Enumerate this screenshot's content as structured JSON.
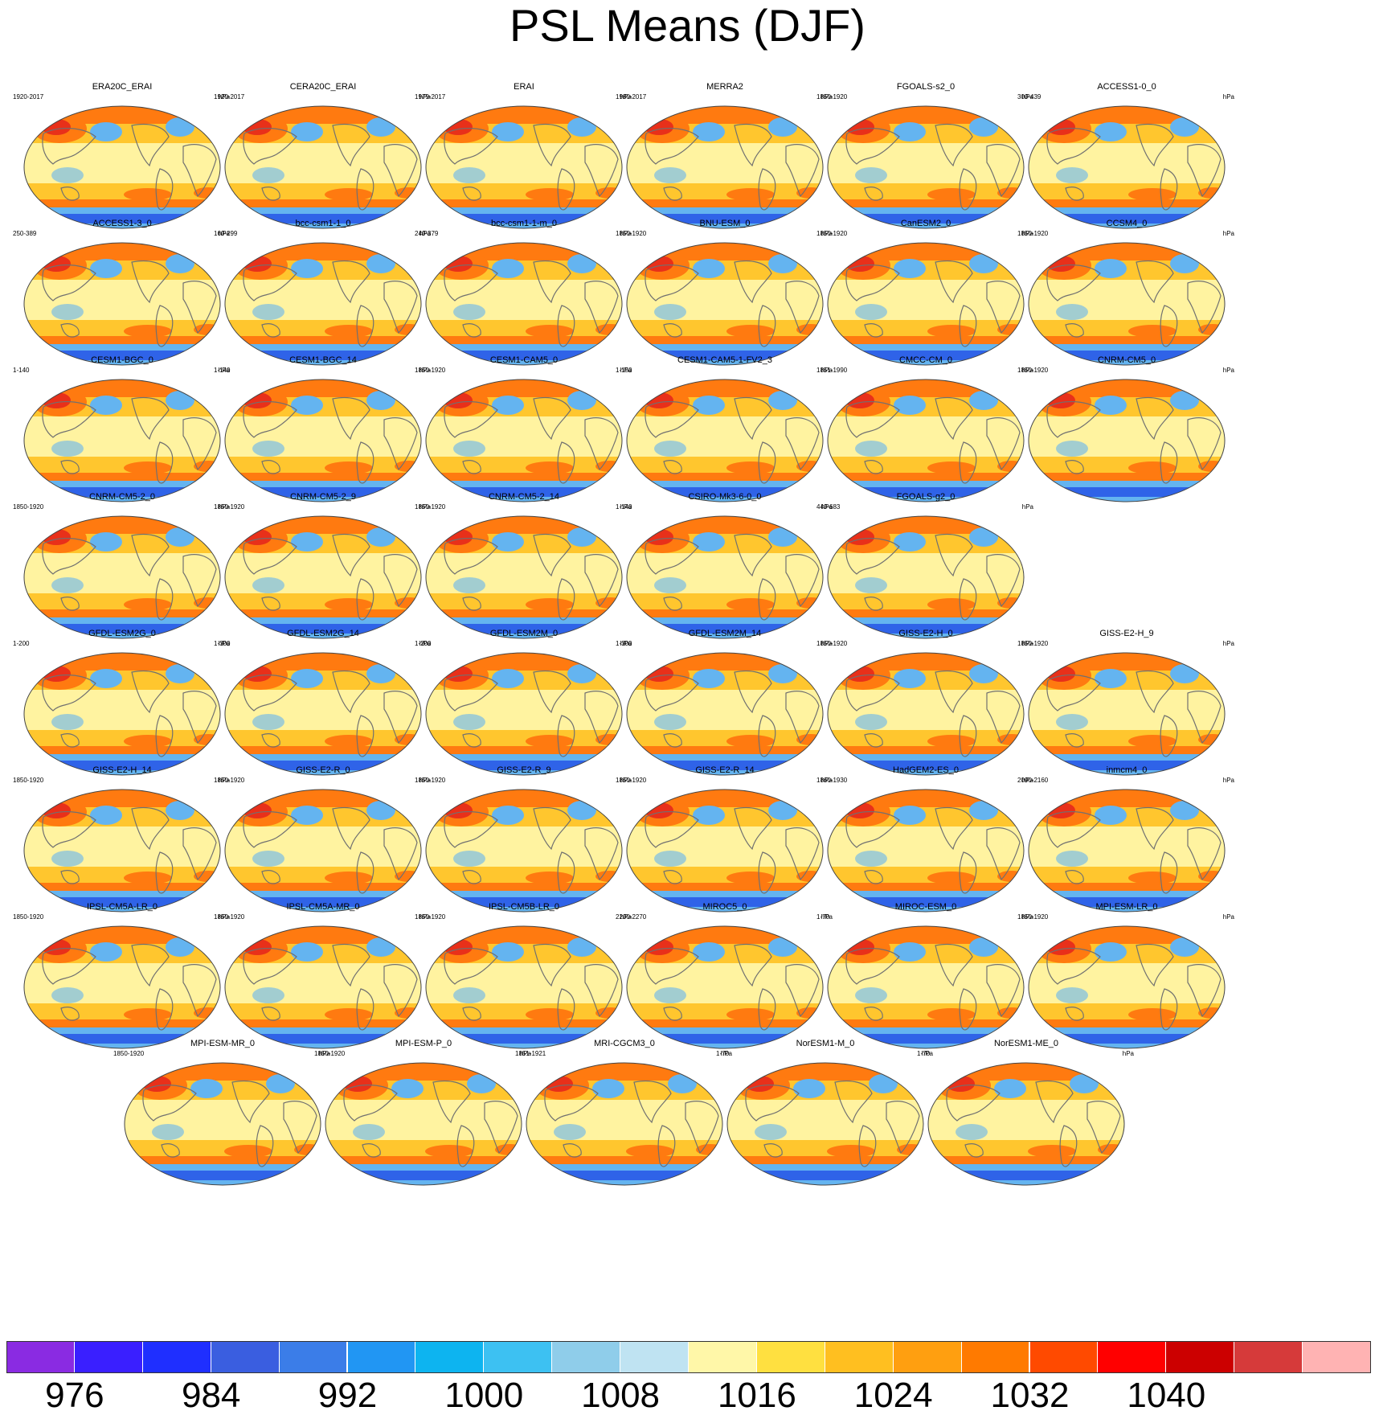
{
  "title": "PSL Means (DJF)",
  "units": "hPa",
  "panels": [
    {
      "name": "ERA20C_ERAI",
      "period": "1920-2017"
    },
    {
      "name": "CERA20C_ERAI",
      "period": "1920-2017"
    },
    {
      "name": "ERAI",
      "period": "1979-2017"
    },
    {
      "name": "MERRA2",
      "period": "1980-2017"
    },
    {
      "name": "FGOALS-s2_0",
      "period": "1850-1920"
    },
    {
      "name": "ACCESS1-0_0",
      "period": "300-439"
    },
    {
      "name": "ACCESS1-3_0",
      "period": "250-389"
    },
    {
      "name": "bcc-csm1-1_0",
      "period": "160-299"
    },
    {
      "name": "bcc-csm1-1-m_0",
      "period": "240-379"
    },
    {
      "name": "BNU-ESM_0",
      "period": "1850-1920"
    },
    {
      "name": "CanESM2_0",
      "period": "1850-1920"
    },
    {
      "name": "CCSM4_0",
      "period": "1850-1920"
    },
    {
      "name": "CESM1-BGC_0",
      "period": "1-140"
    },
    {
      "name": "CESM1-BGC_14",
      "period": "1-140"
    },
    {
      "name": "CESM1-CAM5_0",
      "period": "1850-1920"
    },
    {
      "name": "CESM1-CAM5-1-FV2_3",
      "period": "1-150"
    },
    {
      "name": "CMCC-CM_0",
      "period": "1851-1990"
    },
    {
      "name": "CNRM-CM5_0",
      "period": "1850-1920"
    },
    {
      "name": "CNRM-CM5-2_0",
      "period": "1850-1920"
    },
    {
      "name": "CNRM-CM5-2_9",
      "period": "1850-1920"
    },
    {
      "name": "CNRM-CM5-2_14",
      "period": "1850-1920"
    },
    {
      "name": "CSIRO-Mk3-6-0_0",
      "period": "1-140"
    },
    {
      "name": "FGOALS-g2_0",
      "period": "440-683"
    },
    {
      "name": "GFDL-ESM2G_0",
      "period": "1-200"
    },
    {
      "name": "GFDL-ESM2G_14",
      "period": "1-300"
    },
    {
      "name": "GFDL-ESM2M_0",
      "period": "1-200"
    },
    {
      "name": "GFDL-ESM2M_14",
      "period": "1-300"
    },
    {
      "name": "GISS-E2-H_0",
      "period": "1850-1920"
    },
    {
      "name": "GISS-E2-H_9",
      "period": "1850-1920"
    },
    {
      "name": "GISS-E2-H_14",
      "period": "1850-1920"
    },
    {
      "name": "GISS-E2-R_0",
      "period": "1850-1920"
    },
    {
      "name": "GISS-E2-R_9",
      "period": "1850-1920"
    },
    {
      "name": "GISS-E2-R_14",
      "period": "1850-1920"
    },
    {
      "name": "HadGEM2-ES_0",
      "period": "1860-1930"
    },
    {
      "name": "inmcm4_0",
      "period": "2090-2160"
    },
    {
      "name": "IPSL-CM5A-LR_0",
      "period": "1850-1920"
    },
    {
      "name": "IPSL-CM5A-MR_0",
      "period": "1850-1920"
    },
    {
      "name": "IPSL-CM5B-LR_0",
      "period": "1850-1920"
    },
    {
      "name": "MIROC5_0",
      "period": "2200-2270"
    },
    {
      "name": "MIROC-ESM_0",
      "period": "1-70"
    },
    {
      "name": "MPI-ESM-LR_0",
      "period": "1850-1920"
    },
    {
      "name": "MPI-ESM-MR_0",
      "period": "1850-1920"
    },
    {
      "name": "MPI-ESM-P_0",
      "period": "1850-1920"
    },
    {
      "name": "MRI-CGCM3_0",
      "period": "1851-1921"
    },
    {
      "name": "NorESM1-M_0",
      "period": "1-70"
    },
    {
      "name": "NorESM1-ME_0",
      "period": "1-70"
    }
  ],
  "colorbar": {
    "colors": [
      "#8a2be2",
      "#3a1fff",
      "#1f2fff",
      "#3a5ee0",
      "#3b7de8",
      "#2196f3",
      "#0db4f0",
      "#3dc1f2",
      "#8fcdea",
      "#bfe3f2",
      "#fff7a8",
      "#ffe040",
      "#ffbf20",
      "#ff9f10",
      "#ff7a00",
      "#ff4a00",
      "#ff0000",
      "#cc0000",
      "#d63a3a",
      "#ffb3b3"
    ],
    "tick_labels": [
      "976",
      "984",
      "992",
      "1000",
      "1008",
      "1016",
      "1024",
      "1032",
      "1040"
    ]
  },
  "colors": {
    "ocean_cold": "#2f63e8",
    "ocean_cool": "#64b4f0",
    "neutral": "#fff3a0",
    "warm": "#ffc62e",
    "hot": "#ff7a10",
    "high": "#e8301a",
    "coast": "#707070"
  }
}
